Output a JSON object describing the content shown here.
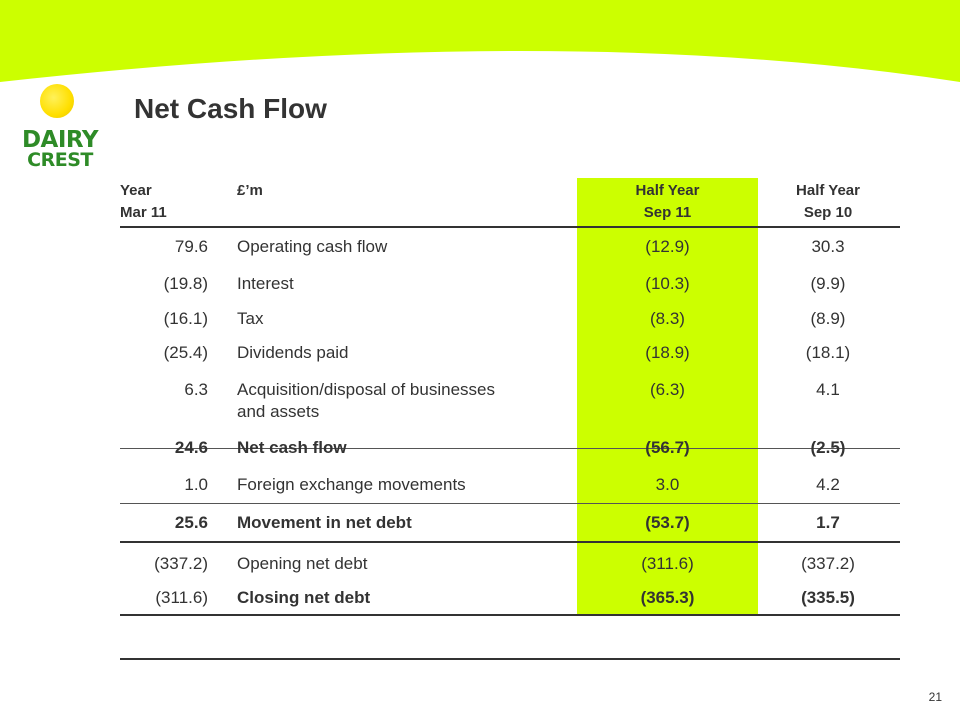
{
  "title": "Net Cash Flow",
  "logo": {
    "line1": "DAIRY",
    "line2": "CREST"
  },
  "headers": {
    "col1": [
      "Year",
      "Mar 11"
    ],
    "col2": [
      "£’m",
      ""
    ],
    "col3": [
      "Half Year",
      "Sep 11"
    ],
    "col4": [
      "Half Year",
      "Sep 10"
    ]
  },
  "rows": [
    {
      "year": "79.6",
      "label": "Operating cash flow",
      "h1": "(12.9)",
      "h2": "30.3"
    },
    {
      "year": "(19.8)",
      "label": "Interest",
      "h1": "(10.3)",
      "h2": "(9.9)"
    },
    {
      "year": "(16.1)",
      "label": "Tax",
      "h1": "(8.3)",
      "h2": "(8.9)"
    },
    {
      "year": "(25.4)",
      "label": "Dividends paid",
      "h1": "(18.9)",
      "h2": "(18.1)"
    },
    {
      "year": "6.3",
      "label": [
        "Acquisition/disposal of businesses",
        "and assets"
      ],
      "h1": "(6.3)",
      "h2": "4.1"
    },
    {
      "year": "24.6",
      "label": "Net cash flow",
      "h1": "(56.7)",
      "h2": "(2.5)"
    },
    {
      "year": "1.0",
      "label": "Foreign exchange movements",
      "h1": "3.0",
      "h2": "4.2"
    },
    {
      "year": "25.6",
      "label": "Movement in net debt",
      "h1": "(53.7)",
      "h2": "1.7"
    },
    {
      "year": "(337.2)",
      "label": "Opening net debt",
      "h1": "(311.6)",
      "h2": "(337.2)"
    },
    {
      "year": "(311.6)",
      "label": "Closing net debt",
      "h1": "(365.3)",
      "h2": "(335.5)"
    }
  ],
  "page_number": "21",
  "colors": {
    "accent": "#ccff00",
    "logo_green": "#2e8b27",
    "logo_sun": "#ffdf00",
    "text": "#333333"
  }
}
